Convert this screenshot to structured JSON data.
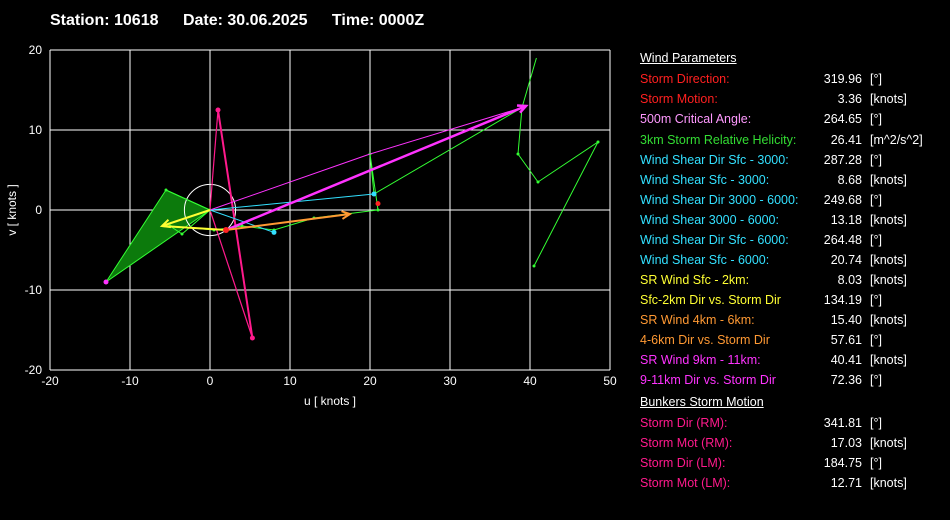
{
  "header": {
    "station": "Station: 10618",
    "date": "Date: 30.06.2025",
    "time": "Time: 0000Z"
  },
  "chart_data": {
    "type": "hodograph",
    "xlabel": "u  [ knots ]",
    "ylabel": "v  [ knots ]",
    "xlim": [
      -20,
      50
    ],
    "ylim": [
      -20,
      20
    ],
    "xticks": [
      "-20",
      "-10",
      "0",
      "10",
      "20",
      "30",
      "40",
      "50"
    ],
    "yticks": [
      "20",
      "10",
      "0",
      "-10",
      "-20"
    ],
    "grid": true,
    "colors": {
      "grid": "#ffffff",
      "green": "#33ff33",
      "darkgreen": "#0c7a0c",
      "pink": "#ff1a8c",
      "magenta": "#ff33ff",
      "cyan": "#33e0ff",
      "yellow": "#ffff33",
      "orange": "#ff9933",
      "red": "#ff2222"
    },
    "hodograph_profile": [
      [
        -13,
        -9
      ],
      [
        -5.5,
        2.5
      ],
      [
        0,
        0
      ],
      [
        -3.5,
        -3
      ],
      [
        -5,
        -2
      ],
      [
        0.5,
        -2.5
      ],
      [
        4,
        -2
      ],
      [
        8,
        -2.5
      ],
      [
        13,
        -1
      ],
      [
        17,
        -0.5
      ],
      [
        21,
        0
      ],
      [
        20,
        7
      ],
      [
        20.5,
        2
      ],
      [
        39,
        12.8
      ],
      [
        38.5,
        7
      ],
      [
        41,
        3.5
      ],
      [
        48.5,
        8.5
      ],
      [
        40.5,
        -7
      ]
    ],
    "storm_motion_vectors": [
      [
        1,
        12.5
      ],
      [
        5.3,
        -16
      ]
    ],
    "hodograph_upper": [
      [
        39,
        12.8
      ],
      [
        40.8,
        19
      ]
    ],
    "critical_angle_circle": {
      "center": [
        0,
        0
      ],
      "radius": 3.2
    },
    "shear_vectors": {
      "sfc_3000": [
        [
          0,
          0
        ],
        [
          20.5,
          2
        ]
      ],
      "sfc_6000": [
        [
          0,
          0
        ],
        [
          8,
          -2.8
        ]
      ],
      "sfc_2km": [
        [
          0,
          0
        ],
        [
          -6,
          -2
        ]
      ],
      "km4_6": [
        [
          2,
          -2.5
        ],
        [
          17.5,
          -0.5
        ]
      ],
      "km9_11": [
        [
          2,
          -2.5
        ],
        [
          39.5,
          13
        ]
      ]
    }
  },
  "panel": {
    "wind_title": "Wind Parameters",
    "wind_rows": [
      {
        "label": "Storm Direction:",
        "value": "319.96",
        "unit": "[°]",
        "color": "#ff2020"
      },
      {
        "label": "Storm Motion:",
        "value": "3.36",
        "unit": "[knots]",
        "color": "#ff2020"
      },
      {
        "label": "500m Critical Angle:",
        "value": "264.65",
        "unit": "[°]",
        "color": "#ff99ff"
      },
      {
        "label": "3km Storm Relative Helicity:",
        "value": "26.41",
        "unit": "[m^2/s^2]",
        "color": "#33dd33"
      },
      {
        "label": "Wind Shear Dir Sfc - 3000:",
        "value": "287.28",
        "unit": "[°]",
        "color": "#33e0ff"
      },
      {
        "label": "Wind Shear Sfc - 3000:",
        "value": "8.68",
        "unit": "[knots]",
        "color": "#33e0ff"
      },
      {
        "label": "Wind Shear Dir 3000 - 6000:",
        "value": "249.68",
        "unit": "[°]",
        "color": "#33e0ff"
      },
      {
        "label": "Wind Shear 3000 - 6000:",
        "value": "13.18",
        "unit": "[knots]",
        "color": "#33e0ff"
      },
      {
        "label": "Wind Shear Dir Sfc - 6000:",
        "value": "264.48",
        "unit": "[°]",
        "color": "#33e0ff"
      },
      {
        "label": "Wind Shear Sfc - 6000:",
        "value": "20.74",
        "unit": "[knots]",
        "color": "#33e0ff"
      },
      {
        "label": "SR Wind Sfc - 2km:",
        "value": "8.03",
        "unit": "[knots]",
        "color": "#ffff33"
      },
      {
        "label": "Sfc-2km Dir vs. Storm Dir",
        "value": "134.19",
        "unit": "[°]",
        "color": "#ffff33"
      },
      {
        "label": "SR Wind 4km - 6km:",
        "value": "15.40",
        "unit": "[knots]",
        "color": "#ff9933"
      },
      {
        "label": "4-6km Dir vs. Storm Dir",
        "value": "57.61",
        "unit": "[°]",
        "color": "#ff9933"
      },
      {
        "label": "SR Wind 9km - 11km:",
        "value": "40.41",
        "unit": "[knots]",
        "color": "#ff33ff"
      },
      {
        "label": "9-11km Dir vs. Storm Dir",
        "value": "72.36",
        "unit": "[°]",
        "color": "#ff33ff"
      }
    ],
    "bunkers_title": "Bunkers Storm Motion",
    "bunkers_rows": [
      {
        "label": "Storm Dir (RM):",
        "value": "341.81",
        "unit": "[°]",
        "color": "#ff1a8c"
      },
      {
        "label": "Storm Mot (RM):",
        "value": "17.03",
        "unit": "[knots]",
        "color": "#ff1a8c"
      },
      {
        "label": "Storm Dir (LM):",
        "value": "184.75",
        "unit": "[°]",
        "color": "#ff1a8c"
      },
      {
        "label": "Storm Mot (LM):",
        "value": "12.71",
        "unit": "[knots]",
        "color": "#ff1a8c"
      }
    ]
  }
}
